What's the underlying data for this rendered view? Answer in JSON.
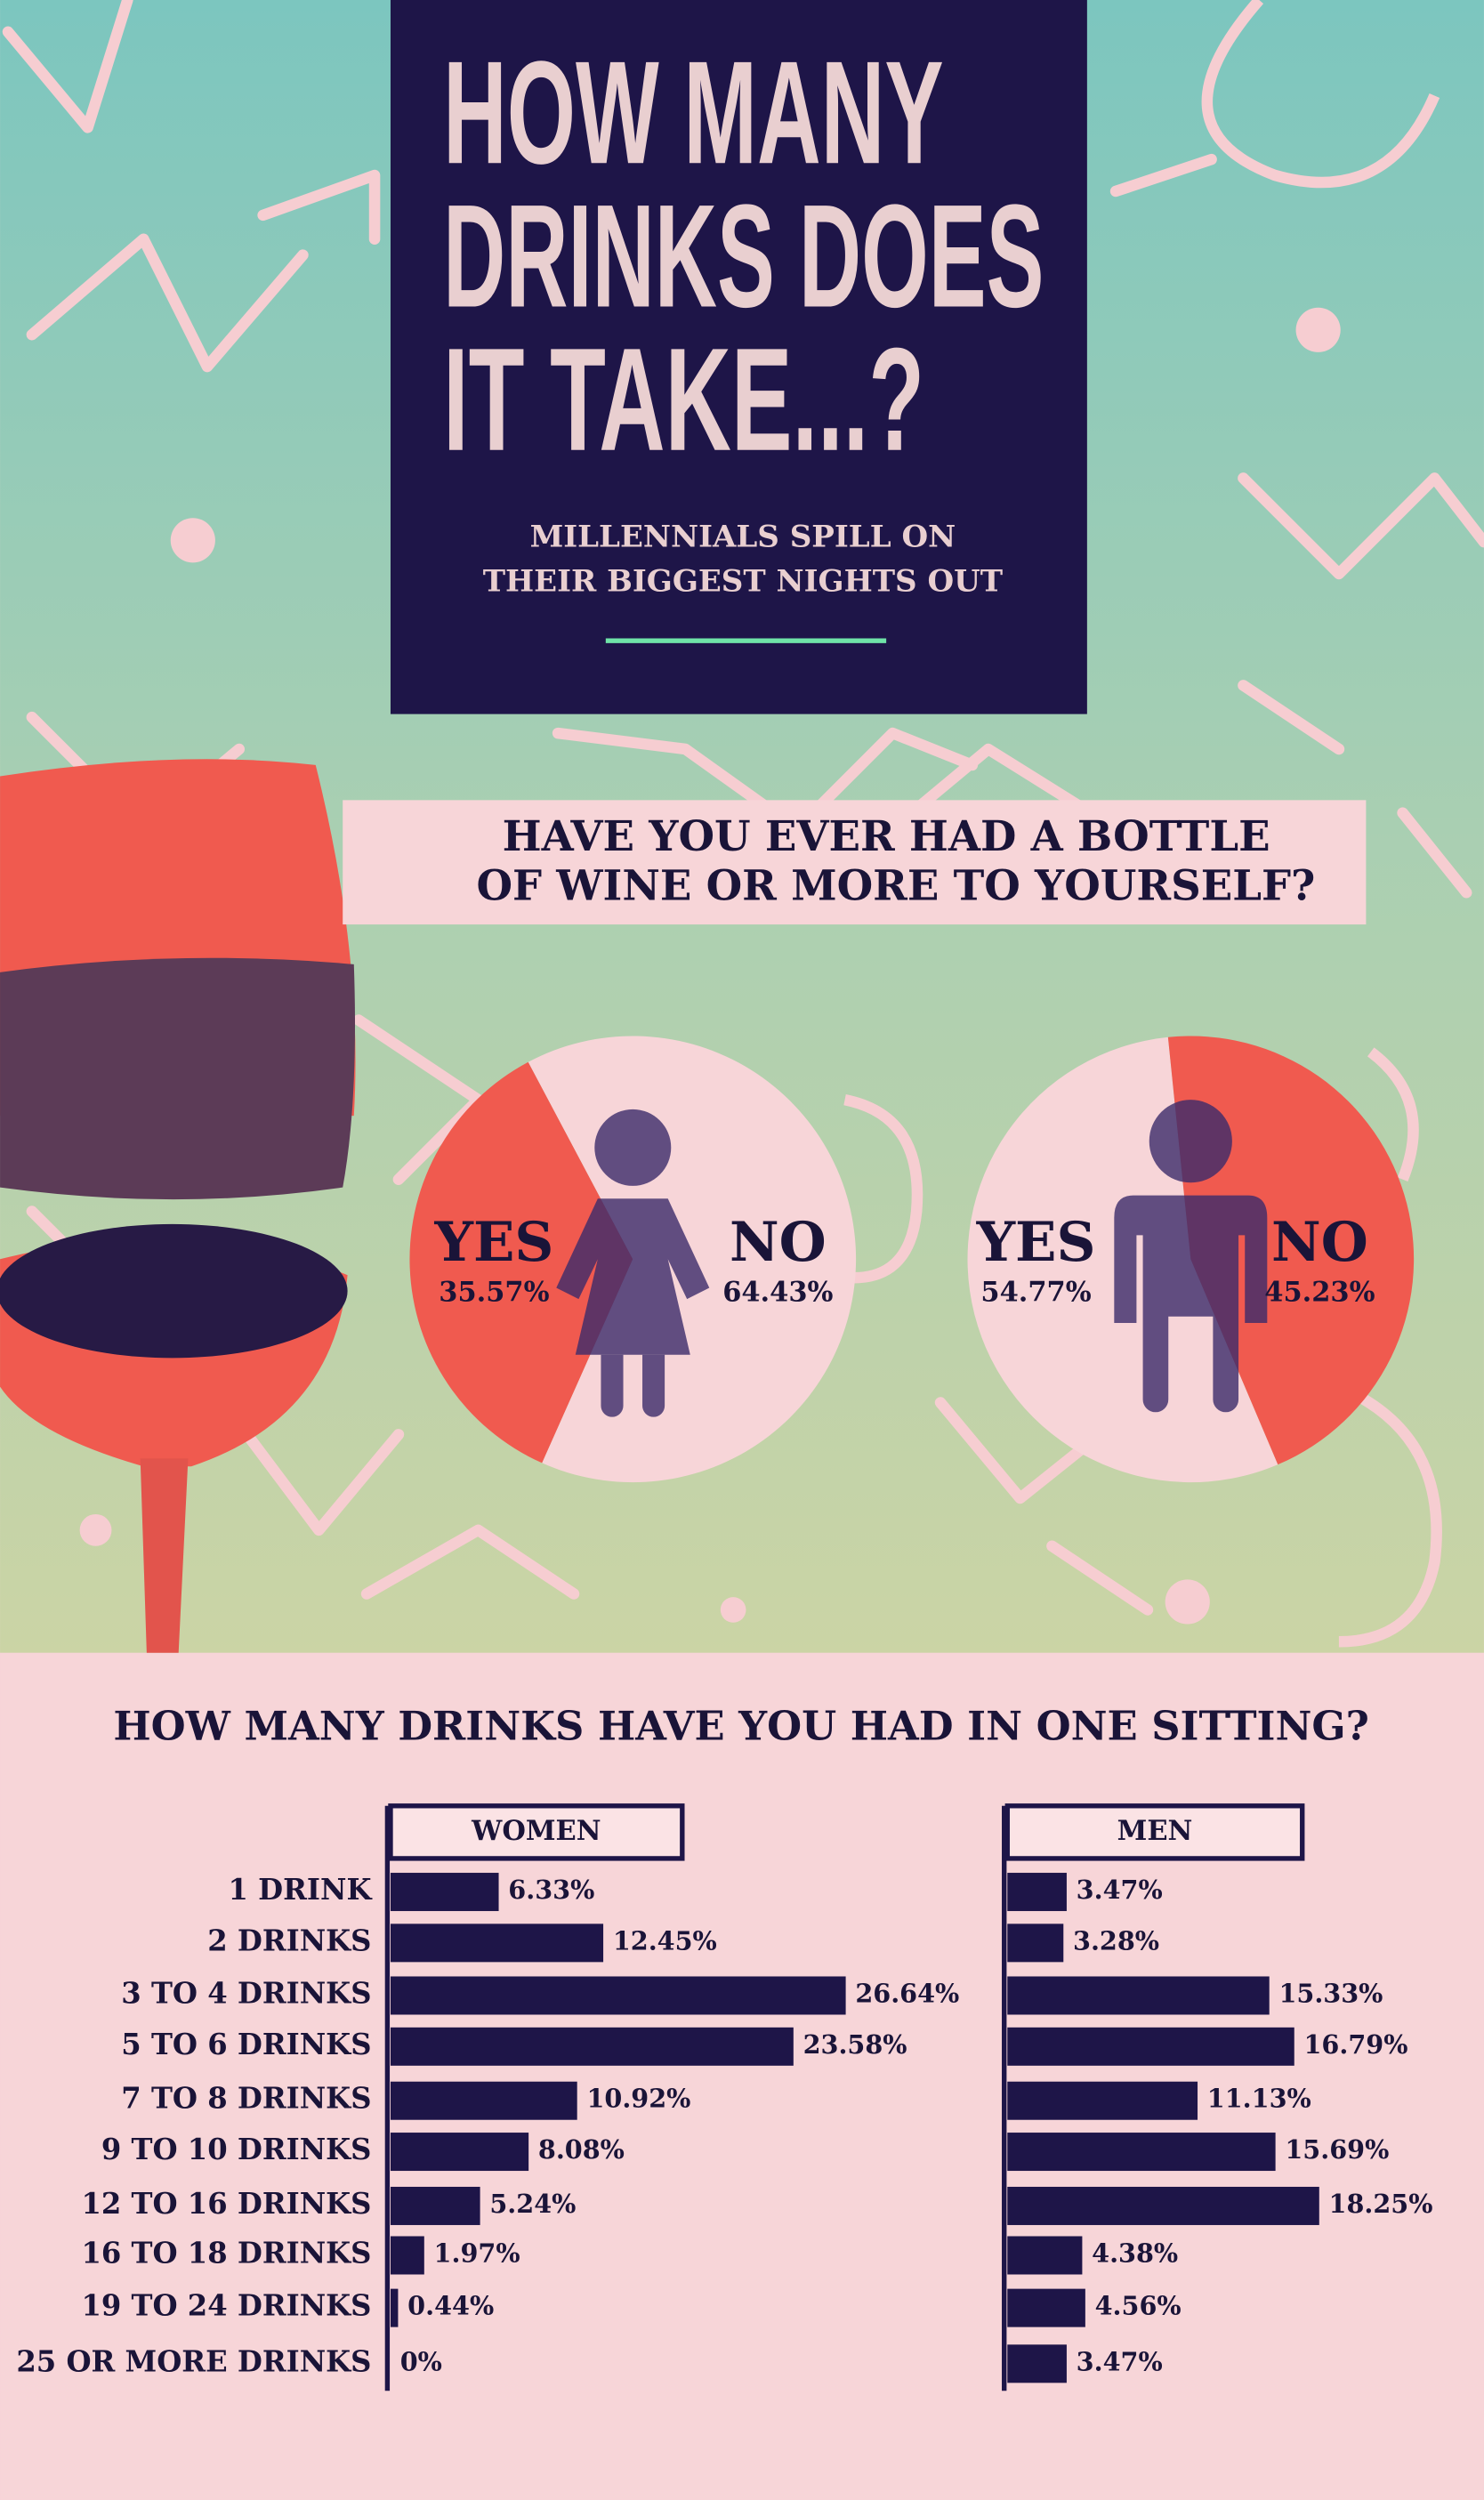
{
  "title": [
    "HOW MANY",
    "DRINKS DOES",
    "IT TAKE...?"
  ],
  "subtitle": [
    "MILLENNIALS SPILL ON",
    "THEIR BIGGEST NIGHTS OUT"
  ],
  "pie_question": [
    "HAVE YOU EVER HAD A BOTTLE",
    "OF WINE OR MORE TO YOURSELF?"
  ],
  "bar_question": "HOW MANY DRINKS HAVE YOU HAD IN ONE SITTING?",
  "chart_data": [
    {
      "type": "pie",
      "categories": [
        "YES",
        "NO"
      ],
      "values": [
        35.57,
        64.43
      ],
      "value_labels": [
        "35.57%",
        "64.43%"
      ],
      "colors": [
        "#f05a4f",
        "#f7d5d8"
      ]
    },
    {
      "type": "pie",
      "categories": [
        "YES",
        "NO"
      ],
      "values": [
        54.77,
        45.23
      ],
      "value_labels": [
        "54.77%",
        "45.23%"
      ],
      "colors": [
        "#f7d5d8",
        "#f05a4f"
      ]
    },
    {
      "type": "bar",
      "orientation": "horizontal",
      "title": "WOMEN",
      "categories": [
        "1 DRINK",
        "2 DRINKS",
        "3 TO 4 DRINKS",
        "5 TO 6 DRINKS",
        "7 TO 8 DRINKS",
        "9 TO 10 DRINKS",
        "12 TO 16 DRINKS",
        "16 TO 18 DRINKS",
        "19 TO 24 DRINKS",
        "25 OR MORE DRINKS"
      ],
      "values": [
        6.33,
        12.45,
        26.64,
        23.58,
        10.92,
        8.08,
        5.24,
        1.97,
        0.44,
        0
      ],
      "value_labels": [
        "6.33%",
        "12.45%",
        "26.64%",
        "23.58%",
        "10.92%",
        "8.08%",
        "5.24%",
        "1.97%",
        "0.44%",
        "0%"
      ],
      "color": "#1e1548"
    },
    {
      "type": "bar",
      "orientation": "horizontal",
      "title": "MEN",
      "values": [
        3.47,
        3.28,
        15.33,
        16.79,
        11.13,
        15.69,
        18.25,
        4.38,
        4.56,
        3.47
      ],
      "value_labels": [
        "3.47%",
        "3.28%",
        "15.33%",
        "16.79%",
        "11.13%",
        "15.69%",
        "18.25%",
        "4.38%",
        "4.56%",
        "3.47%"
      ],
      "color": "#1e1548"
    }
  ]
}
